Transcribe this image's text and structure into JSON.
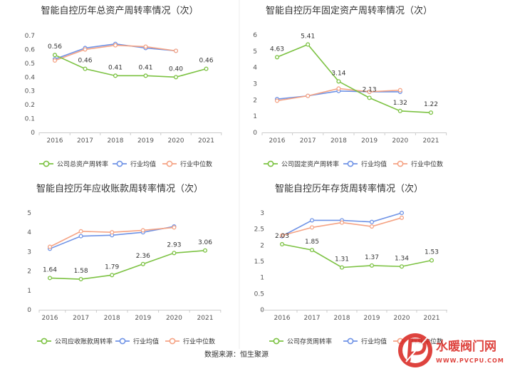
{
  "colors": {
    "company": "#7cc242",
    "mean": "#6f93e6",
    "median": "#f5a384",
    "axis": "#cccccc",
    "divider": "#e6e6e6"
  },
  "chart_data": [
    {
      "type": "line",
      "title": "智能自控历年总资产周转率情况（次）",
      "categories": [
        "2016",
        "2017",
        "2018",
        "2019",
        "2020",
        "2021"
      ],
      "ylim": [
        0,
        0.7
      ],
      "yticks": [
        "0",
        "0.1",
        "0.2",
        "0.3",
        "0.4",
        "0.5",
        "0.6",
        "0.7"
      ],
      "grid": false,
      "legend_position": "bottom",
      "series": [
        {
          "name": "公司总资产周转率",
          "role": "company",
          "values": [
            0.56,
            0.46,
            0.41,
            0.41,
            0.4,
            0.46
          ],
          "labels": [
            "0.56",
            "0.46",
            "0.41",
            "0.41",
            "0.40",
            "0.46"
          ]
        },
        {
          "name": "行业均值",
          "role": "mean",
          "values": [
            0.53,
            0.61,
            0.64,
            0.61,
            0.59,
            null
          ]
        },
        {
          "name": "行业中位数",
          "role": "median",
          "values": [
            0.52,
            0.6,
            0.63,
            0.62,
            0.59,
            null
          ]
        }
      ]
    },
    {
      "type": "line",
      "title": "智能自控历年固定资产周转率情况（次）",
      "categories": [
        "2016",
        "2017",
        "2018",
        "2019",
        "2020",
        "2021"
      ],
      "ylim": [
        0,
        6
      ],
      "yticks": [
        "0",
        "1",
        "2",
        "3",
        "4",
        "5",
        "6"
      ],
      "grid": false,
      "legend_position": "bottom",
      "series": [
        {
          "name": "公司固定资产周转率",
          "role": "company",
          "values": [
            4.63,
            5.41,
            3.14,
            2.13,
            1.32,
            1.22
          ],
          "labels": [
            "4.63",
            "5.41",
            "3.14",
            "2.13",
            "1.32",
            "1.22"
          ]
        },
        {
          "name": "行业均值",
          "role": "mean",
          "values": [
            2.05,
            2.25,
            2.55,
            2.5,
            2.5,
            null
          ]
        },
        {
          "name": "行业中位数",
          "role": "median",
          "values": [
            1.95,
            2.25,
            2.7,
            2.5,
            2.6,
            null
          ]
        }
      ]
    },
    {
      "type": "line",
      "title": "智能自控历年应收账款周转率情况（次）",
      "categories": [
        "2016",
        "2017",
        "2018",
        "2019",
        "2020",
        "2021"
      ],
      "ylim": [
        0,
        5
      ],
      "yticks": [
        "0",
        "1",
        "2",
        "3",
        "4",
        "5"
      ],
      "grid": false,
      "legend_position": "bottom",
      "series": [
        {
          "name": "公司应收账款周转率",
          "role": "company",
          "values": [
            1.64,
            1.58,
            1.79,
            2.36,
            2.93,
            3.06
          ],
          "labels": [
            "1.64",
            "1.58",
            "1.79",
            "2.36",
            "2.93",
            "3.06"
          ]
        },
        {
          "name": "行业均值",
          "role": "mean",
          "values": [
            3.15,
            3.8,
            3.85,
            4.0,
            4.3,
            null
          ]
        },
        {
          "name": "行业中位数",
          "role": "median",
          "values": [
            3.25,
            4.05,
            4.0,
            4.1,
            4.25,
            null
          ]
        }
      ]
    },
    {
      "type": "line",
      "title": "智能自控历年存货周转率情况（次）",
      "categories": [
        "2016",
        "2017",
        "2018",
        "2019",
        "2020",
        "2021"
      ],
      "ylim": [
        0,
        3
      ],
      "yticks": [
        "0",
        "0.5",
        "1",
        "1.5",
        "2",
        "2.5",
        "3"
      ],
      "grid": false,
      "legend_position": "bottom",
      "series": [
        {
          "name": "公司存货周转率",
          "role": "company",
          "values": [
            2.03,
            1.85,
            1.31,
            1.37,
            1.34,
            1.53
          ],
          "labels": [
            "2.03",
            "1.85",
            "1.31",
            "1.37",
            "1.34",
            "1.53"
          ]
        },
        {
          "name": "行业均值",
          "role": "mean",
          "values": [
            2.28,
            2.77,
            2.77,
            2.72,
            3.0,
            null
          ]
        },
        {
          "name": "行业中位数",
          "role": "median",
          "values": [
            2.3,
            2.55,
            2.7,
            2.58,
            2.85,
            null
          ]
        }
      ]
    }
  ],
  "footer": {
    "source": "数据来源：恒生聚源"
  },
  "watermark": {
    "name": "水暖阀门网",
    "url": "WWW.PVCPU.COM",
    "icon": "pv-logo-icon"
  }
}
